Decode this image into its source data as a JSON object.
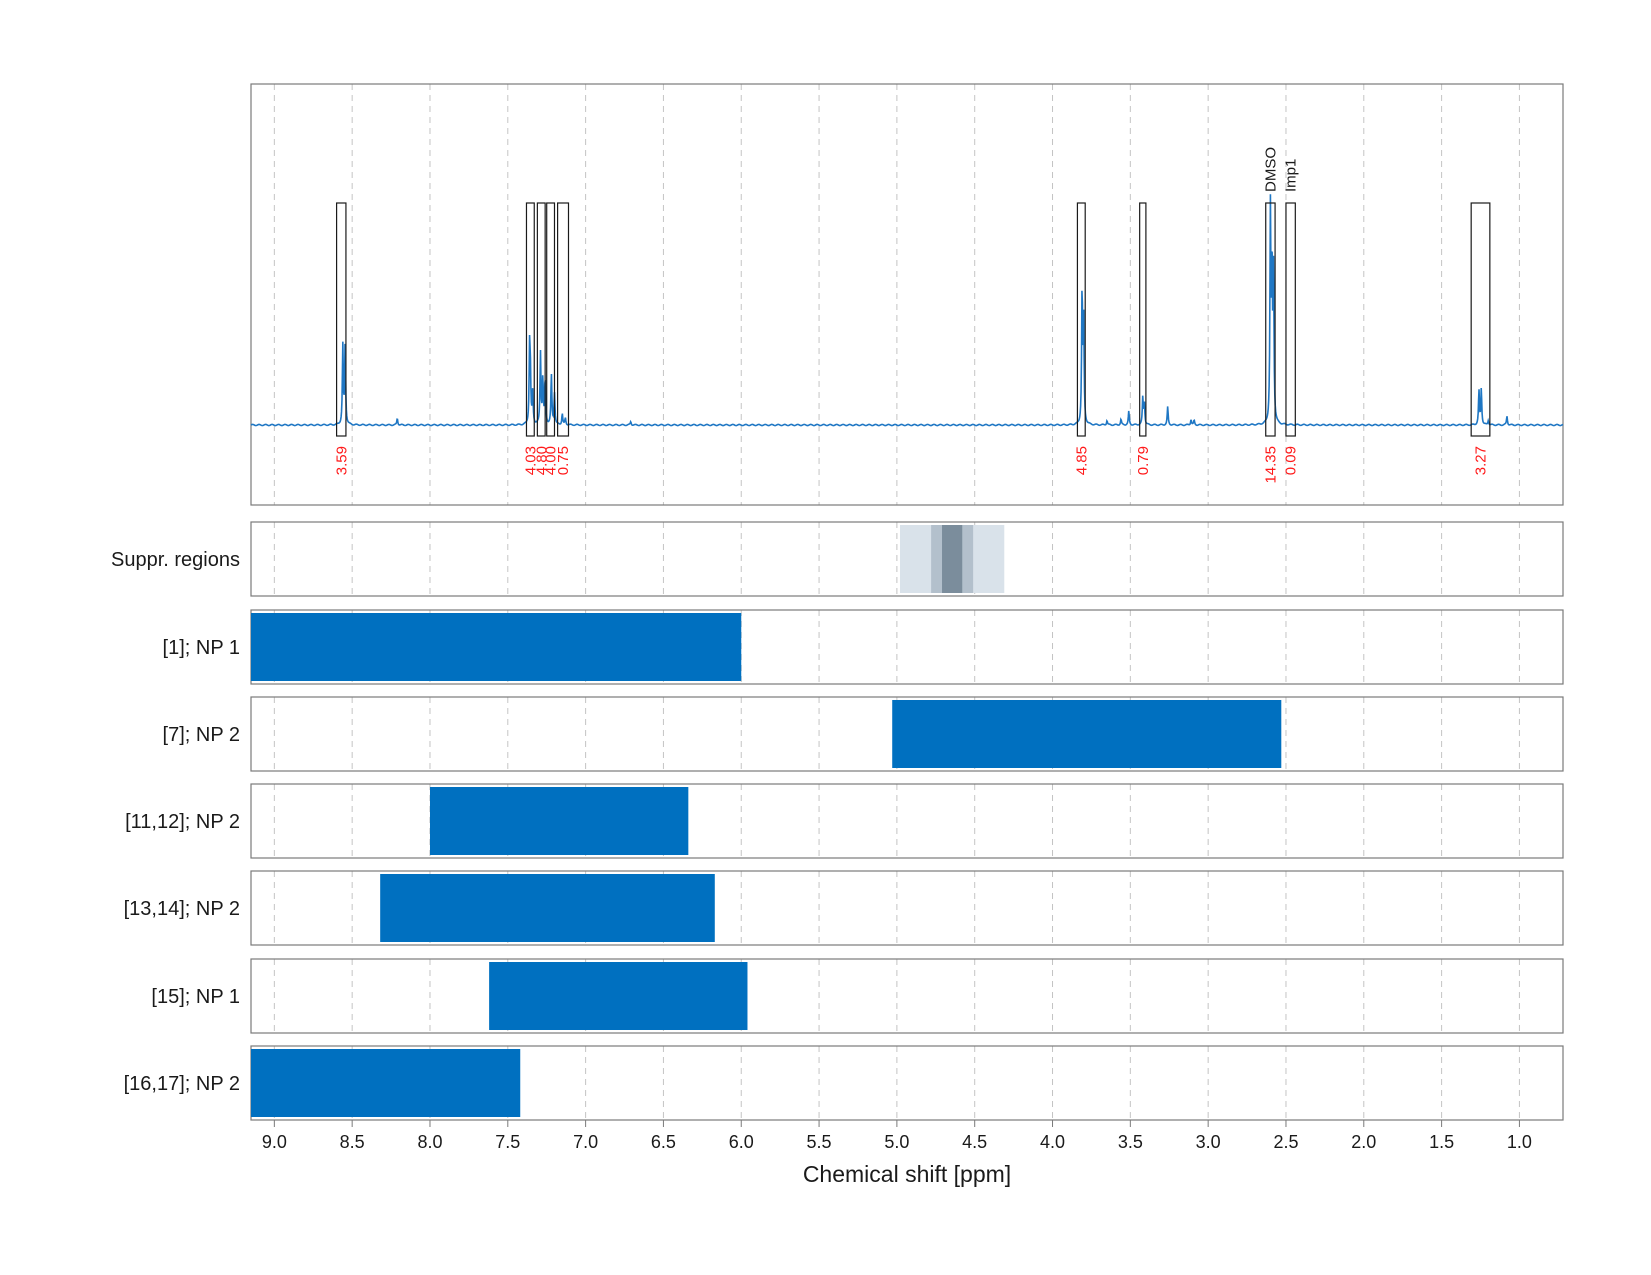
{
  "chart_data": {
    "type": "line",
    "xlabel": "Chemical shift [ppm]",
    "xlim": [
      9.15,
      0.72
    ],
    "x_reversed": true,
    "grid": true,
    "xticks": [
      9.0,
      8.5,
      8.0,
      7.5,
      7.0,
      6.5,
      6.0,
      5.5,
      5.0,
      4.5,
      4.0,
      3.5,
      3.0,
      2.5,
      2.0,
      1.5,
      1.0
    ],
    "xtick_labels": [
      "9.0",
      "8.5",
      "8.0",
      "7.5",
      "7.0",
      "6.5",
      "6.0",
      "5.5",
      "5.0",
      "4.5",
      "4.0",
      "3.5",
      "3.0",
      "2.5",
      "2.0",
      "1.5",
      "1.0"
    ],
    "colors": {
      "spectrum": "#1f77c4",
      "bar": "#0070c0",
      "integral": "#ff1a1a",
      "suppression": [
        "#d9e2ea",
        "#b3c0cc",
        "#7b8d9c"
      ]
    },
    "spectrum": {
      "baseline": 0,
      "ymax": 1.0,
      "peaks": [
        [
          8.56,
          0.35
        ],
        [
          8.545,
          0.36
        ],
        [
          8.21,
          0.03
        ],
        [
          7.36,
          0.33
        ],
        [
          7.355,
          0.2
        ],
        [
          7.34,
          0.14
        ],
        [
          7.29,
          0.32
        ],
        [
          7.275,
          0.2
        ],
        [
          7.26,
          0.2
        ],
        [
          7.22,
          0.22
        ],
        [
          7.2,
          0.14
        ],
        [
          7.15,
          0.05
        ],
        [
          7.13,
          0.03
        ],
        [
          6.71,
          0.015
        ],
        [
          3.81,
          0.6
        ],
        [
          3.8,
          0.45
        ],
        [
          3.65,
          0.02
        ],
        [
          3.56,
          0.025
        ],
        [
          3.51,
          0.06
        ],
        [
          3.42,
          0.12
        ],
        [
          3.41,
          0.1
        ],
        [
          3.26,
          0.08
        ],
        [
          3.11,
          0.025
        ],
        [
          3.09,
          0.02
        ],
        [
          2.6,
          0.93
        ],
        [
          2.59,
          0.68
        ],
        [
          2.58,
          0.65
        ],
        [
          1.26,
          0.15
        ],
        [
          1.245,
          0.16
        ],
        [
          1.2,
          0.02
        ],
        [
          1.08,
          0.04
        ]
      ]
    },
    "signals": [
      {
        "range": [
          8.6,
          8.54
        ],
        "integral": "3.59"
      },
      {
        "range": [
          7.38,
          7.33
        ],
        "integral": "4.03"
      },
      {
        "range": [
          7.31,
          7.26
        ],
        "integral": "4.80"
      },
      {
        "range": [
          7.25,
          7.2
        ],
        "integral": "4.00"
      },
      {
        "range": [
          7.18,
          7.11
        ],
        "integral": "0.75"
      },
      {
        "range": [
          3.84,
          3.79
        ],
        "integral": "4.85"
      },
      {
        "range": [
          3.44,
          3.4
        ],
        "integral": "0.79"
      },
      {
        "range": [
          2.63,
          2.57
        ],
        "integral": "14.35",
        "label": "DMSO"
      },
      {
        "range": [
          2.5,
          2.44
        ],
        "integral": "0.09",
        "label": "Imp1"
      },
      {
        "range": [
          1.31,
          1.19
        ],
        "integral": "3.27"
      }
    ],
    "rows": [
      {
        "label": "Suppr. regions",
        "type": "suppression",
        "bands": [
          [
            4.98,
            4.31
          ],
          [
            4.78,
            4.51
          ],
          [
            4.71,
            4.58
          ]
        ]
      },
      {
        "label": "[1]; NP 1",
        "range": [
          9.15,
          6.0
        ]
      },
      {
        "label": "[7]; NP 2",
        "range": [
          5.03,
          2.53
        ]
      },
      {
        "label": "[11,12]; NP 2",
        "range": [
          8.0,
          6.34
        ]
      },
      {
        "label": "[13,14]; NP 2",
        "range": [
          8.32,
          6.17
        ]
      },
      {
        "label": "[15]; NP 1",
        "range": [
          7.62,
          5.96
        ]
      },
      {
        "label": "[16,17]; NP 2",
        "range": [
          9.15,
          7.42
        ]
      }
    ]
  }
}
